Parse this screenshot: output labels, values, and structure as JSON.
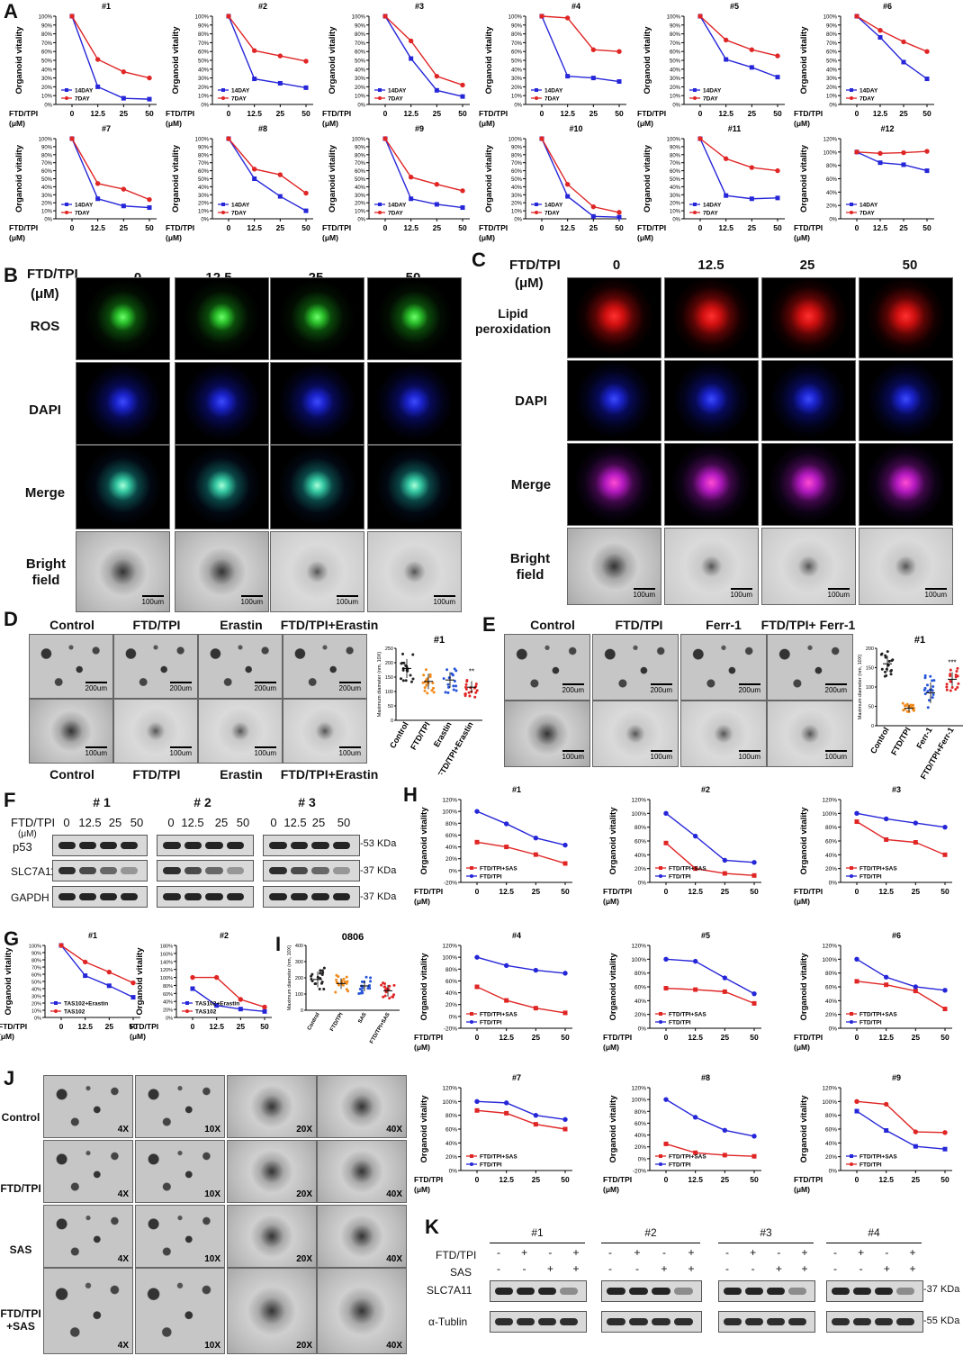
{
  "panels": {
    "A": "A",
    "B": "B",
    "C": "C",
    "D": "D",
    "E": "E",
    "F": "F",
    "G": "G",
    "H": "H",
    "I": "I",
    "J": "J",
    "K": "K"
  },
  "common": {
    "yaxis": "Organoid vitality",
    "xaxis_line1": "FTD/TPI",
    "xaxis_line2": "(μM)",
    "x_ticks": [
      "0",
      "12.5",
      "25",
      "50"
    ]
  },
  "panelA": {
    "legend": [
      "14DAY",
      "7DAY"
    ],
    "colors": {
      "s14": "#2626d9",
      "s7": "#e02525"
    }
  },
  "chart_data": [
    {
      "type": "line",
      "title": "#1",
      "x": [
        0,
        12.5,
        25,
        50
      ],
      "series": [
        {
          "name": "14DAY",
          "values": [
            100,
            20,
            7,
            6
          ]
        },
        {
          "name": "7DAY",
          "values": [
            100,
            51,
            37,
            30
          ]
        }
      ],
      "ylim": [
        0,
        100
      ],
      "y_ticks": [
        "0%",
        "10%",
        "20%",
        "30%",
        "40%",
        "50%",
        "60%",
        "70%",
        "80%",
        "90%",
        "100%"
      ]
    },
    {
      "type": "line",
      "title": "#2",
      "x": [
        0,
        12.5,
        25,
        50
      ],
      "series": [
        {
          "name": "14DAY",
          "values": [
            100,
            29,
            24,
            19
          ]
        },
        {
          "name": "7DAY",
          "values": [
            100,
            61,
            55,
            49
          ]
        }
      ],
      "ylim": [
        0,
        100
      ],
      "y_ticks": [
        "0%",
        "10%",
        "20%",
        "30%",
        "40%",
        "50%",
        "60%",
        "70%",
        "80%",
        "90%",
        "100%"
      ]
    },
    {
      "type": "line",
      "title": "#3",
      "x": [
        0,
        12.5,
        25,
        50
      ],
      "series": [
        {
          "name": "14DAY",
          "values": [
            100,
            52,
            16,
            9
          ]
        },
        {
          "name": "7DAY",
          "values": [
            100,
            72,
            32,
            22
          ]
        }
      ],
      "ylim": [
        0,
        100
      ],
      "y_ticks": [
        "0%",
        "10%",
        "20%",
        "30%",
        "40%",
        "50%",
        "60%",
        "70%",
        "80%",
        "90%",
        "100%"
      ]
    },
    {
      "type": "line",
      "title": "#4",
      "x": [
        0,
        12.5,
        25,
        50
      ],
      "series": [
        {
          "name": "14DAY",
          "values": [
            100,
            32,
            30,
            26
          ]
        },
        {
          "name": "7DAY",
          "values": [
            100,
            98,
            62,
            60
          ]
        }
      ],
      "ylim": [
        0,
        100
      ],
      "y_ticks": [
        "0%",
        "10%",
        "20%",
        "30%",
        "40%",
        "50%",
        "60%",
        "70%",
        "80%",
        "90%",
        "100%"
      ]
    },
    {
      "type": "line",
      "title": "#5",
      "x": [
        0,
        12.5,
        25,
        50
      ],
      "series": [
        {
          "name": "14DAY",
          "values": [
            100,
            51,
            42,
            31
          ]
        },
        {
          "name": "7DAY",
          "values": [
            100,
            73,
            62,
            55
          ]
        }
      ],
      "ylim": [
        0,
        100
      ],
      "y_ticks": [
        "0%",
        "10%",
        "20%",
        "30%",
        "40%",
        "50%",
        "60%",
        "70%",
        "80%",
        "90%",
        "100%"
      ]
    },
    {
      "type": "line",
      "title": "#6",
      "x": [
        0,
        12.5,
        25,
        50
      ],
      "series": [
        {
          "name": "14DAY",
          "values": [
            100,
            76,
            48,
            29
          ]
        },
        {
          "name": "7DAY",
          "values": [
            100,
            84,
            71,
            60
          ]
        }
      ],
      "ylim": [
        0,
        100
      ],
      "y_ticks": [
        "0%",
        "10%",
        "20%",
        "30%",
        "40%",
        "50%",
        "60%",
        "70%",
        "80%",
        "90%",
        "100%"
      ]
    },
    {
      "type": "line",
      "title": "#7",
      "x": [
        0,
        12.5,
        25,
        50
      ],
      "series": [
        {
          "name": "14DAY",
          "values": [
            100,
            25,
            16,
            14
          ]
        },
        {
          "name": "7DAY",
          "values": [
            100,
            44,
            37,
            24
          ]
        }
      ],
      "ylim": [
        0,
        100
      ],
      "y_ticks": [
        "0%",
        "10%",
        "20%",
        "30%",
        "40%",
        "50%",
        "60%",
        "70%",
        "80%",
        "90%",
        "100%"
      ]
    },
    {
      "type": "line",
      "title": "#8",
      "x": [
        0,
        12.5,
        25,
        50
      ],
      "series": [
        {
          "name": "14DAY",
          "values": [
            100,
            50,
            28,
            10
          ]
        },
        {
          "name": "7DAY",
          "values": [
            100,
            62,
            55,
            32
          ]
        }
      ],
      "ylim": [
        0,
        100
      ],
      "y_ticks": [
        "0%",
        "10%",
        "20%",
        "30%",
        "40%",
        "50%",
        "60%",
        "70%",
        "80%",
        "90%",
        "100%"
      ]
    },
    {
      "type": "line",
      "title": "#9",
      "x": [
        0,
        12.5,
        25,
        50
      ],
      "series": [
        {
          "name": "14DAY",
          "values": [
            100,
            25,
            18,
            14
          ]
        },
        {
          "name": "7DAY",
          "values": [
            100,
            52,
            43,
            35
          ]
        }
      ],
      "ylim": [
        0,
        100
      ],
      "y_ticks": [
        "0%",
        "10%",
        "20%",
        "30%",
        "40%",
        "50%",
        "60%",
        "70%",
        "80%",
        "90%",
        "100%"
      ]
    },
    {
      "type": "line",
      "title": "#10",
      "x": [
        0,
        12.5,
        25,
        50
      ],
      "series": [
        {
          "name": "14DAY",
          "values": [
            100,
            28,
            3,
            2
          ]
        },
        {
          "name": "7DAY",
          "values": [
            100,
            43,
            15,
            8
          ]
        }
      ],
      "ylim": [
        0,
        100
      ],
      "y_ticks": [
        "0%",
        "10%",
        "20%",
        "30%",
        "40%",
        "50%",
        "60%",
        "70%",
        "80%",
        "90%",
        "100%"
      ]
    },
    {
      "type": "line",
      "title": "#11",
      "x": [
        0,
        12.5,
        25,
        50
      ],
      "series": [
        {
          "name": "14DAY",
          "values": [
            100,
            29,
            25,
            26
          ]
        },
        {
          "name": "7DAY",
          "values": [
            100,
            75,
            64,
            60
          ]
        }
      ],
      "ylim": [
        0,
        100
      ],
      "y_ticks": [
        "0%",
        "10%",
        "20%",
        "30%",
        "40%",
        "50%",
        "60%",
        "70%",
        "80%",
        "90%",
        "100%"
      ]
    },
    {
      "type": "line",
      "title": "#12",
      "x": [
        0,
        12.5,
        25,
        50
      ],
      "series": [
        {
          "name": "14DAY",
          "values": [
            100,
            84,
            81,
            72
          ]
        },
        {
          "name": "7DAY",
          "values": [
            100,
            98,
            99,
            101
          ]
        }
      ],
      "ylim": [
        0,
        120
      ],
      "y_ticks": [
        "0%",
        "20%",
        "40%",
        "60%",
        "80%",
        "100%",
        "120%"
      ]
    }
  ],
  "panelB": {
    "header": "FTD/TPI",
    "unit": "(μM)",
    "cols": [
      "0",
      "12.5",
      "25",
      "50"
    ],
    "rows": [
      "ROS",
      "DAPI",
      "Merge",
      "Bright field"
    ],
    "scale": "100um"
  },
  "panelC": {
    "header": "FTD/TPI",
    "unit": "(μM)",
    "cols": [
      "0",
      "12.5",
      "25",
      "50"
    ],
    "rows": [
      "Lipid peroxidation",
      "DAPI",
      "Merge",
      "Bright field"
    ],
    "scale": "100um"
  },
  "panelD": {
    "cols": [
      "Control",
      "FTD/TPI",
      "Erastin",
      "FTD/TPI+Erastin"
    ],
    "scale_top": "200um",
    "scale_bottom": "100um",
    "plot_title": "#1",
    "plot_ylabel": "Maximum diameter (nm, 10X)",
    "plot_yticks": [
      "0",
      "50",
      "100",
      "150",
      "200",
      "250"
    ],
    "sig": "**",
    "colors": [
      "#222222",
      "#f08a1c",
      "#2855d8",
      "#e02525"
    ]
  },
  "panelE": {
    "cols": [
      "Control",
      "FTD/TPI",
      "Ferr-1",
      "FTD/TPI+ Ferr-1"
    ],
    "xcats": [
      "Control",
      "FTD/TPI",
      "Ferr-1",
      "FTD/TPI+Ferr-1"
    ],
    "scale_top": "200um",
    "scale_bottom": "100um",
    "plot_title": "#1",
    "plot_ylabel": "Maximum diameter (nm, 10X)",
    "plot_yticks": [
      "0",
      "50",
      "100",
      "150",
      "200"
    ],
    "sig": "***",
    "colors": [
      "#222222",
      "#f08a1c",
      "#2855d8",
      "#e02525"
    ]
  },
  "panelF": {
    "groups": [
      "# 1",
      "# 2",
      "# 3"
    ],
    "ftd_label": "FTD/TPI",
    "unit": "(μM)",
    "doses": [
      "0",
      "12.5",
      "25",
      "50"
    ],
    "proteins": [
      "p53",
      "SLC7A11",
      "GAPDH"
    ],
    "kda": [
      "-53 KDa",
      "-37 KDa",
      "-37 KDa"
    ]
  },
  "panelG": {
    "charts": [
      {
        "title": "#1",
        "legend": [
          "TAS102+Erastin",
          "TAS102"
        ],
        "colors": [
          "#2626d9",
          "#e02525"
        ],
        "yticks": [
          "0%",
          "10%",
          "20%",
          "30%",
          "40%",
          "50%",
          "60%",
          "70%",
          "80%",
          "90%",
          "100%"
        ],
        "ymax": 100
      },
      {
        "title": "#2",
        "legend": [
          "TAS102+Erastin",
          "TAS102"
        ],
        "colors": [
          "#2626d9",
          "#e02525"
        ],
        "yticks": [
          "0%",
          "20%",
          "40%",
          "60%",
          "80%",
          "100%",
          "120%",
          "140%",
          "160%",
          "180%"
        ],
        "ymax": 180
      }
    ]
  },
  "panelG_data": [
    {
      "series": [
        {
          "name": "TAS102+Erastin",
          "values": [
            100,
            58,
            44,
            28
          ]
        },
        {
          "name": "TAS102",
          "values": [
            100,
            77,
            63,
            48
          ]
        }
      ]
    },
    {
      "series": [
        {
          "name": "TAS102+Erastin",
          "values": [
            72,
            30,
            21,
            15
          ]
        },
        {
          "name": "TAS102",
          "values": [
            100,
            100,
            45,
            26
          ]
        }
      ]
    }
  ],
  "panelI": {
    "title": "0806",
    "ylabel": "Maximum diameter (nm, 10X)",
    "cats": [
      "Control",
      "FTD/TPI",
      "SAS",
      "FTD/TPI+SAS"
    ],
    "yticks": [
      "0",
      "100",
      "200",
      "300",
      "400"
    ]
  },
  "panelH": {
    "legend": [
      "FTD/TPI+SAS",
      "FTD/TPI"
    ],
    "charts": [
      {
        "title": "#1",
        "yticks": [
          "-20%",
          "0%",
          "20%",
          "40%",
          "60%",
          "80%",
          "100%",
          "120%"
        ],
        "ymin": -20,
        "ymax": 120,
        "sas": [
          48,
          40,
          27,
          12
        ],
        "ftd": [
          100,
          79,
          55,
          43
        ]
      },
      {
        "title": "#2",
        "yticks": [
          "0%",
          "20%",
          "40%",
          "60%",
          "80%",
          "100%",
          "120%"
        ],
        "ymin": 0,
        "ymax": 120,
        "sas": [
          57,
          20,
          13,
          10
        ],
        "ftd": [
          100,
          67,
          32,
          29
        ]
      },
      {
        "title": "#3",
        "yticks": [
          "0%",
          "20%",
          "40%",
          "60%",
          "80%",
          "100%",
          "120%"
        ],
        "ymin": 0,
        "ymax": 120,
        "sas": [
          88,
          62,
          58,
          40
        ],
        "ftd": [
          100,
          92,
          86,
          80
        ]
      },
      {
        "title": "#4",
        "yticks": [
          "-20%",
          "0%",
          "20%",
          "40%",
          "60%",
          "80%",
          "100%",
          "120%"
        ],
        "ymin": -20,
        "ymax": 120,
        "sas": [
          50,
          27,
          14,
          6
        ],
        "ftd": [
          100,
          86,
          78,
          73
        ]
      },
      {
        "title": "#5",
        "yticks": [
          "0%",
          "20%",
          "40%",
          "60%",
          "80%",
          "100%",
          "120%"
        ],
        "ymin": 0,
        "ymax": 120,
        "sas": [
          58,
          56,
          53,
          36
        ],
        "ftd": [
          100,
          97,
          73,
          50
        ]
      },
      {
        "title": "#6",
        "yticks": [
          "0%",
          "20%",
          "40%",
          "60%",
          "80%",
          "100%",
          "120%"
        ],
        "ymin": 0,
        "ymax": 120,
        "sas": [
          68,
          63,
          54,
          28
        ],
        "ftd": [
          100,
          74,
          60,
          55
        ]
      },
      {
        "title": "#7",
        "yticks": [
          "0%",
          "20%",
          "40%",
          "60%",
          "80%",
          "100%",
          "120%"
        ],
        "ymin": 0,
        "ymax": 120,
        "sas": [
          87,
          83,
          67,
          60
        ],
        "ftd": [
          100,
          98,
          80,
          74
        ]
      },
      {
        "title": "#8",
        "yticks": [
          "-20%",
          "0%",
          "20%",
          "40%",
          "60%",
          "80%",
          "100%",
          "120%"
        ],
        "ymin": -20,
        "ymax": 120,
        "sas": [
          25,
          10,
          6,
          4
        ],
        "ftd": [
          100,
          70,
          48,
          38
        ]
      },
      {
        "title": "#9",
        "yticks": [
          "0%",
          "20%",
          "40%",
          "60%",
          "80%",
          "100%",
          "120%"
        ],
        "ymin": 0,
        "ymax": 120,
        "sas": [
          86,
          58,
          35,
          31
        ],
        "ftd": [
          100,
          96,
          56,
          55
        ]
      }
    ]
  },
  "panelJ": {
    "rows": [
      "Control",
      "FTD/TPI",
      "SAS",
      "FTD/TPI\n+SAS"
    ],
    "mags": [
      "4X",
      "10X",
      "20X",
      "40X"
    ]
  },
  "panelK": {
    "groups": [
      "#1",
      "#2",
      "#3",
      "#4"
    ],
    "row_labels": [
      "FTD/TPI",
      "SAS"
    ],
    "ftd_signs": [
      "-",
      "+",
      "-",
      "+"
    ],
    "sas_signs": [
      "-",
      "-",
      "+",
      "+"
    ],
    "proteins": [
      "SLC7A11",
      "α-Tublin"
    ],
    "kda": [
      "-37 KDa",
      "-55 KDa"
    ]
  }
}
